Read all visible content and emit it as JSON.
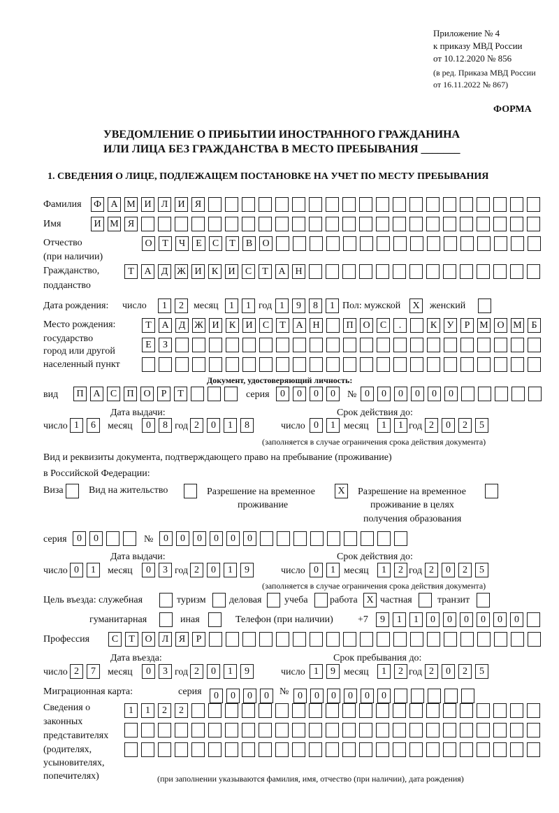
{
  "header": {
    "appendix": "Приложение № 4",
    "order": "к приказу МВД России",
    "order_date": "от 10.12.2020 № 856",
    "edition1": "(в ред. Приказа МВД России",
    "edition2": "от 16.11.2022 № 867)",
    "form": "ФОРМА",
    "title1": "УВЕДОМЛЕНИЕ О ПРИБЫТИИ ИНОСТРАННОГО ГРАЖДАНИНА",
    "title2": "ИЛИ ЛИЦА БЕЗ ГРАЖДАНСТВА В МЕСТО ПРЕБЫВАНИЯ _______",
    "section1": "1. СВЕДЕНИЯ О ЛИЦЕ, ПОДЛЕЖАЩЕМ ПОСТАНОВКЕ НА УЧЕТ ПО МЕСТУ ПРЕБЫВАНИЯ"
  },
  "labels": {
    "surname": "Фамилия",
    "name": "Имя",
    "patronymic1": "Отчество",
    "patronymic2": "(при наличии)",
    "citizenship1": "Гражданство,",
    "citizenship2": "подданство",
    "birth_date": "Дата рождения:",
    "day": "число",
    "month": "месяц",
    "year": "год",
    "sex": "Пол: мужской",
    "female": "женский",
    "birthplace1": "Место рождения:",
    "birthplace2": "государство",
    "birthplace3": "город или другой",
    "birthplace4": "населенный пункт",
    "id_doc": "Документ, удостоверяющий личность:",
    "kind": "вид",
    "series": "серия",
    "number": "№",
    "issue_date": "Дата выдачи:",
    "valid_until": "Срок действия до:",
    "validity_note": "(заполняется в случае ограничения срока действия документа)",
    "right_doc1": "Вид и реквизиты документа, подтверждающего право на пребывание (проживание)",
    "right_doc2": "в Российской Федерации:",
    "visa": "Виза",
    "residence": "Вид на жительство",
    "trp1": "Разрешение на временное",
    "trp2": "проживание",
    "trp_edu1": "Разрешение на временное",
    "trp_edu2": "проживание в целях",
    "trp_edu3": "получения образования",
    "purpose": "Цель въезда: служебная",
    "tourism": "туризм",
    "business": "деловая",
    "study": "учеба",
    "work": "работа",
    "private": "частная",
    "transit": "транзит",
    "humanitarian": "гуманитарная",
    "other": "иная",
    "phone": "Телефон (при наличии)",
    "phone_prefix": "+7",
    "profession": "Профессия",
    "entry_date": "Дата въезда:",
    "stay_until": "Срок пребывания до:",
    "migration_card": "Миграционная карта:",
    "reps1": "Сведения о",
    "reps2": "законных",
    "reps3": "представителях",
    "reps4": "(родителях,",
    "reps5": "усыновителях,",
    "reps6": "попечителях)",
    "reps_note": "(при заполнении указываются фамилия, имя, отчество (при наличии), дата рождения)"
  },
  "fields": {
    "surname": [
      "Ф",
      "А",
      "М",
      "И",
      "Л",
      "И",
      "Я"
    ],
    "name": [
      "И",
      "М",
      "Я"
    ],
    "patronymic": [
      "О",
      "Т",
      "Ч",
      "Е",
      "С",
      "Т",
      "В",
      "О"
    ],
    "citizenship": [
      "Т",
      "А",
      "Д",
      "Ж",
      "И",
      "К",
      "И",
      "С",
      "Т",
      "А",
      "Н"
    ],
    "birth_day": [
      "1",
      "2"
    ],
    "birth_month": [
      "1",
      "1"
    ],
    "birth_year": [
      "1",
      "9",
      "8",
      "1"
    ],
    "sex_male": [
      "X"
    ],
    "sex_female": [
      ""
    ],
    "birthplace_row1": [
      "Т",
      "А",
      "Д",
      "Ж",
      "И",
      "К",
      "И",
      "С",
      "Т",
      "А",
      "Н",
      "",
      "П",
      "О",
      "С",
      ".",
      "",
      "К",
      "У",
      "Р",
      "М",
      "О",
      "М",
      "Б"
    ],
    "birthplace_row2": [
      "Е",
      "З"
    ],
    "birthplace_row3": [],
    "id_kind": [
      "П",
      "А",
      "С",
      "П",
      "О",
      "Р",
      "Т"
    ],
    "id_series": [
      "0",
      "0",
      "0",
      "0"
    ],
    "id_number": [
      "0",
      "0",
      "0",
      "0",
      "0",
      "0"
    ],
    "id_issue_day": [
      "1",
      "6"
    ],
    "id_issue_month": [
      "0",
      "8"
    ],
    "id_issue_year": [
      "2",
      "0",
      "1",
      "8"
    ],
    "id_valid_day": [
      "0",
      "1"
    ],
    "id_valid_month": [
      "1",
      "1"
    ],
    "id_valid_year": [
      "2",
      "0",
      "2",
      "5"
    ],
    "right_visa": [
      ""
    ],
    "right_residence": [
      ""
    ],
    "right_trp": [
      "X"
    ],
    "right_trp_edu": [
      ""
    ],
    "right_series": [
      "0",
      "0",
      "",
      ""
    ],
    "right_number": [
      "0",
      "0",
      "0",
      "0",
      "0",
      "0"
    ],
    "right_issue_day": [
      "0",
      "1"
    ],
    "right_issue_month": [
      "0",
      "3"
    ],
    "right_issue_year": [
      "2",
      "0",
      "1",
      "9"
    ],
    "right_valid_day": [
      "0",
      "1"
    ],
    "right_valid_month": [
      "1",
      "2"
    ],
    "right_valid_year": [
      "2",
      "0",
      "2",
      "5"
    ],
    "purpose_official": [
      ""
    ],
    "purpose_tourism": [
      ""
    ],
    "purpose_business": [
      ""
    ],
    "purpose_study": [
      ""
    ],
    "purpose_work": [
      "X"
    ],
    "purpose_private": [
      ""
    ],
    "purpose_transit": [
      ""
    ],
    "purpose_humanitarian": [
      ""
    ],
    "purpose_other": [
      ""
    ],
    "phone": [
      "9",
      "1",
      "1",
      "0",
      "0",
      "0",
      "0",
      "0",
      "0",
      ""
    ],
    "profession": [
      "С",
      "Т",
      "О",
      "Л",
      "Я",
      "Р"
    ],
    "entry_day": [
      "2",
      "7"
    ],
    "entry_month": [
      "0",
      "3"
    ],
    "entry_year": [
      "2",
      "0",
      "1",
      "9"
    ],
    "stay_day": [
      "1",
      "9"
    ],
    "stay_month": [
      "1",
      "2"
    ],
    "stay_year": [
      "2",
      "0",
      "2",
      "5"
    ],
    "mc_series": [
      "0",
      "0",
      "0",
      "0"
    ],
    "mc_number": [
      "0",
      "0",
      "0",
      "0",
      "0",
      "0"
    ],
    "reps_row1": [
      "1",
      "1",
      "2",
      "2"
    ],
    "reps_row2": [],
    "reps_row3": []
  }
}
